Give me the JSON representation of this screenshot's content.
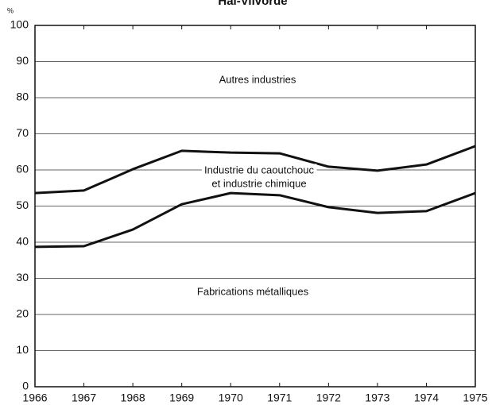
{
  "chart_data": {
    "type": "line",
    "title": "Hal-Vilvorde",
    "y_label": "%",
    "x": [
      1966,
      1967,
      1968,
      1969,
      1970,
      1971,
      1972,
      1973,
      1974,
      1975
    ],
    "series": [
      {
        "color": "#111111",
        "values": [
          53.6,
          54.3,
          60.2,
          65.3,
          64.8,
          64.6,
          60.9,
          59.8,
          61.5,
          66.6
        ]
      },
      {
        "color": "#111111",
        "values": [
          38.7,
          38.9,
          43.5,
          50.5,
          53.6,
          53.0,
          49.7,
          48.1,
          48.6,
          53.6
        ]
      }
    ],
    "annotations": [
      "Autres industries",
      "Industrie du caoutchouc",
      "et industrie chimique",
      "Fabrications métalliques"
    ],
    "xlim": [
      1966,
      1975
    ],
    "xticks": [
      1966,
      1967,
      1968,
      1969,
      1970,
      1971,
      1972,
      1973,
      1974,
      1975
    ],
    "ylim": [
      0,
      100
    ],
    "yticks": [
      0,
      10,
      20,
      30,
      40,
      50,
      60,
      70,
      80,
      90,
      100
    ],
    "grid": true
  }
}
